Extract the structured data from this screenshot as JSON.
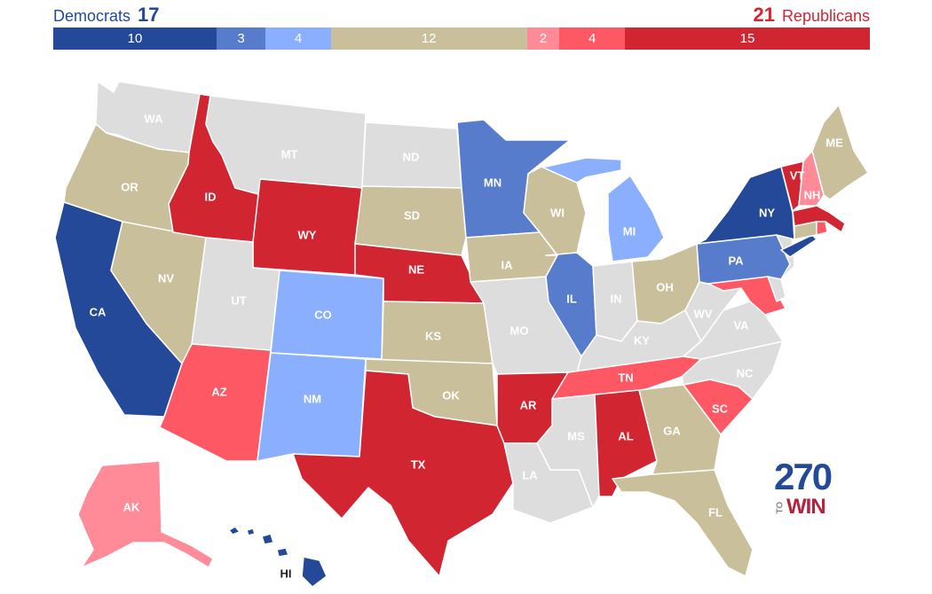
{
  "header": {
    "left_label": "Democrats",
    "left_count": "17",
    "right_count": "21",
    "right_label": "Republicans"
  },
  "bar": [
    {
      "value": 10,
      "label": "10",
      "color": "#244999"
    },
    {
      "value": 3,
      "label": "3",
      "color": "#577ccc"
    },
    {
      "value": 4,
      "label": "4",
      "color": "#8aafff"
    },
    {
      "value": 12,
      "label": "12",
      "color": "#c9c09b"
    },
    {
      "value": 2,
      "label": "2",
      "color": "#ff8b98"
    },
    {
      "value": 4,
      "label": "4",
      "color": "#ff5865"
    },
    {
      "value": 15,
      "label": "15",
      "color": "#d22532"
    }
  ],
  "colors": {
    "safe_d": "#244999",
    "likely_d": "#577ccc",
    "lean_d": "#8aafff",
    "tossup": "#c9c09b",
    "tilt_r": "#ff8b98",
    "lean_r": "#ff5865",
    "safe_r": "#d22532",
    "no_race": "#dddddd"
  },
  "states": {
    "WA": {
      "label": "WA",
      "rating": "no_race"
    },
    "OR": {
      "label": "OR",
      "rating": "tossup"
    },
    "CA": {
      "label": "CA",
      "rating": "safe_d"
    },
    "NV": {
      "label": "NV",
      "rating": "tossup"
    },
    "ID": {
      "label": "ID",
      "rating": "safe_r"
    },
    "MT": {
      "label": "MT",
      "rating": "no_race"
    },
    "WY": {
      "label": "WY",
      "rating": "safe_r"
    },
    "UT": {
      "label": "UT",
      "rating": "no_race"
    },
    "AZ": {
      "label": "AZ",
      "rating": "lean_r"
    },
    "CO": {
      "label": "CO",
      "rating": "lean_d"
    },
    "NM": {
      "label": "NM",
      "rating": "lean_d"
    },
    "ND": {
      "label": "ND",
      "rating": "no_race"
    },
    "SD": {
      "label": "SD",
      "rating": "tossup"
    },
    "NE": {
      "label": "NE",
      "rating": "safe_r"
    },
    "KS": {
      "label": "KS",
      "rating": "tossup"
    },
    "OK": {
      "label": "OK",
      "rating": "tossup"
    },
    "TX": {
      "label": "TX",
      "rating": "safe_r"
    },
    "MN": {
      "label": "MN",
      "rating": "likely_d"
    },
    "IA": {
      "label": "IA",
      "rating": "tossup"
    },
    "MO": {
      "label": "MO",
      "rating": "no_race"
    },
    "AR": {
      "label": "AR",
      "rating": "safe_r"
    },
    "LA": {
      "label": "LA",
      "rating": "no_race"
    },
    "WI": {
      "label": "WI",
      "rating": "tossup"
    },
    "IL": {
      "label": "IL",
      "rating": "likely_d"
    },
    "MI": {
      "label": "MI",
      "rating": "lean_d"
    },
    "IN": {
      "label": "IN",
      "rating": "no_race"
    },
    "OH": {
      "label": "OH",
      "rating": "tossup"
    },
    "KY": {
      "label": "KY",
      "rating": "no_race"
    },
    "TN": {
      "label": "TN",
      "rating": "lean_r"
    },
    "MS": {
      "label": "MS",
      "rating": "no_race"
    },
    "AL": {
      "label": "AL",
      "rating": "safe_r"
    },
    "GA": {
      "label": "GA",
      "rating": "tossup"
    },
    "FL": {
      "label": "FL",
      "rating": "tossup"
    },
    "SC": {
      "label": "SC",
      "rating": "lean_r"
    },
    "NC": {
      "label": "NC",
      "rating": "no_race"
    },
    "VA": {
      "label": "VA",
      "rating": "no_race"
    },
    "WV": {
      "label": "WV",
      "rating": "no_race"
    },
    "PA": {
      "label": "PA",
      "rating": "likely_d"
    },
    "NY": {
      "label": "NY",
      "rating": "safe_d"
    },
    "VT": {
      "label": "VT",
      "rating": "safe_r"
    },
    "NH": {
      "label": "NH",
      "rating": "tilt_r"
    },
    "ME": {
      "label": "ME",
      "rating": "tossup"
    },
    "MA": {
      "label": "",
      "rating": "safe_r"
    },
    "RI": {
      "label": "",
      "rating": "lean_r"
    },
    "CT": {
      "label": "",
      "rating": "tossup"
    },
    "NJ": {
      "label": "",
      "rating": "no_race"
    },
    "DE": {
      "label": "",
      "rating": "no_race"
    },
    "MD": {
      "label": "",
      "rating": "lean_r"
    },
    "AK": {
      "label": "AK",
      "rating": "tilt_r"
    },
    "HI": {
      "label": "HI",
      "rating": "safe_d"
    }
  },
  "logo": {
    "number": "270",
    "to": "TO",
    "win": "WIN"
  }
}
